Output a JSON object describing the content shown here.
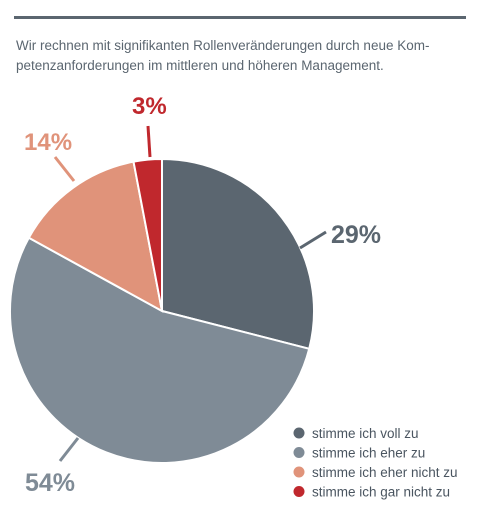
{
  "subtitle": "Wir rechnen mit signifikanten Rollenveränderungen durch neue Kom-petenzanforderungen im mittleren und höheren Management.",
  "chart_data": {
    "type": "pie",
    "title": "",
    "series": [
      {
        "label": "stimme ich voll zu",
        "value": 29,
        "display": "29%",
        "color": "#5b6670"
      },
      {
        "label": "stimme ich eher zu",
        "value": 54,
        "display": "54%",
        "color": "#7f8b96"
      },
      {
        "label": "stimme ich eher nicht zu",
        "value": 14,
        "display": "14%",
        "color": "#e0937a"
      },
      {
        "label": "stimme ich gar nicht zu",
        "value": 3,
        "display": "3%",
        "color": "#c0282d"
      }
    ],
    "legend_position": "bottom-right"
  }
}
